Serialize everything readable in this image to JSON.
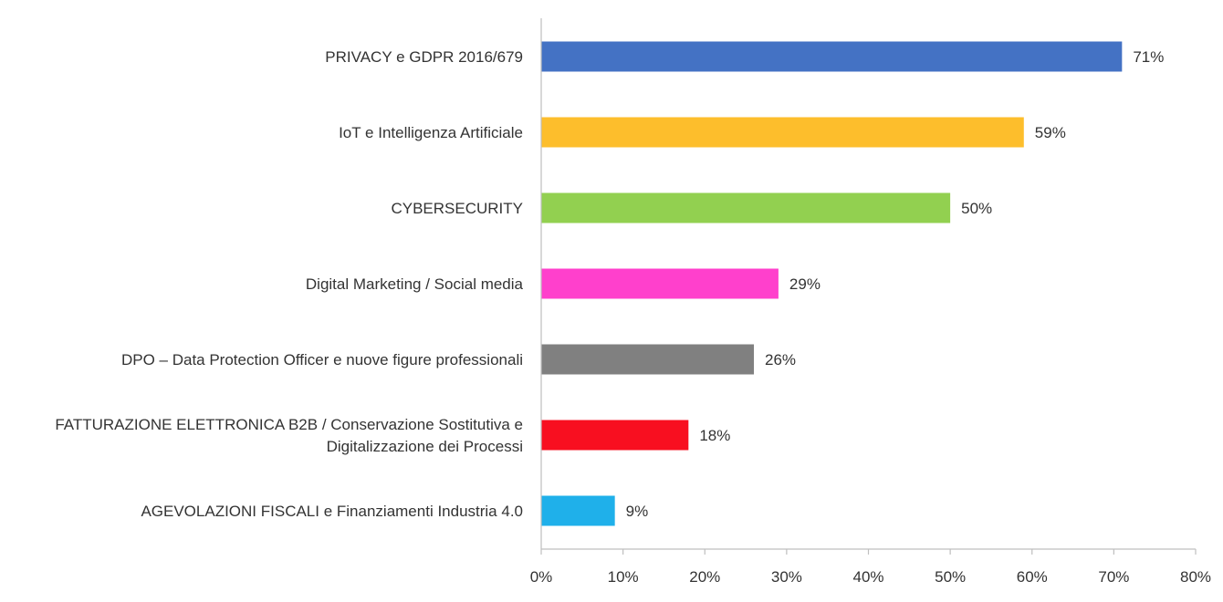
{
  "chart_data": {
    "type": "bar",
    "orientation": "horizontal",
    "categories": [
      [
        "PRIVACY  e GDPR 2016/679"
      ],
      [
        "IoT e Intelligenza Artificiale"
      ],
      [
        "CYBERSECURITY"
      ],
      [
        "Digital Marketing / Social media"
      ],
      [
        "DPO – Data Protection Officer e nuove figure professionali"
      ],
      [
        "FATTURAZIONE ELETTRONICA B2B / Conservazione Sostitutiva e",
        "Digitalizzazione dei Processi"
      ],
      [
        "AGEVOLAZIONI FISCALI e Finanziamenti Industria 4.0"
      ]
    ],
    "values": [
      71,
      59,
      50,
      29,
      26,
      18,
      9
    ],
    "value_labels": [
      "71%",
      "59%",
      "50%",
      "29%",
      "26%",
      "18%",
      "9%"
    ],
    "colors": [
      "#4472C4",
      "#FDBE2C",
      "#92D050",
      "#FF40CC",
      "#808080",
      "#F80F20",
      "#1FB0EA"
    ],
    "xlim": [
      0,
      80
    ],
    "xticks": [
      0,
      10,
      20,
      30,
      40,
      50,
      60,
      70,
      80
    ],
    "xtick_labels": [
      "0%",
      "10%",
      "20%",
      "30%",
      "40%",
      "50%",
      "60%",
      "70%",
      "80%"
    ],
    "grid": false,
    "legend": "none",
    "title": "",
    "xlabel": "",
    "ylabel": ""
  }
}
